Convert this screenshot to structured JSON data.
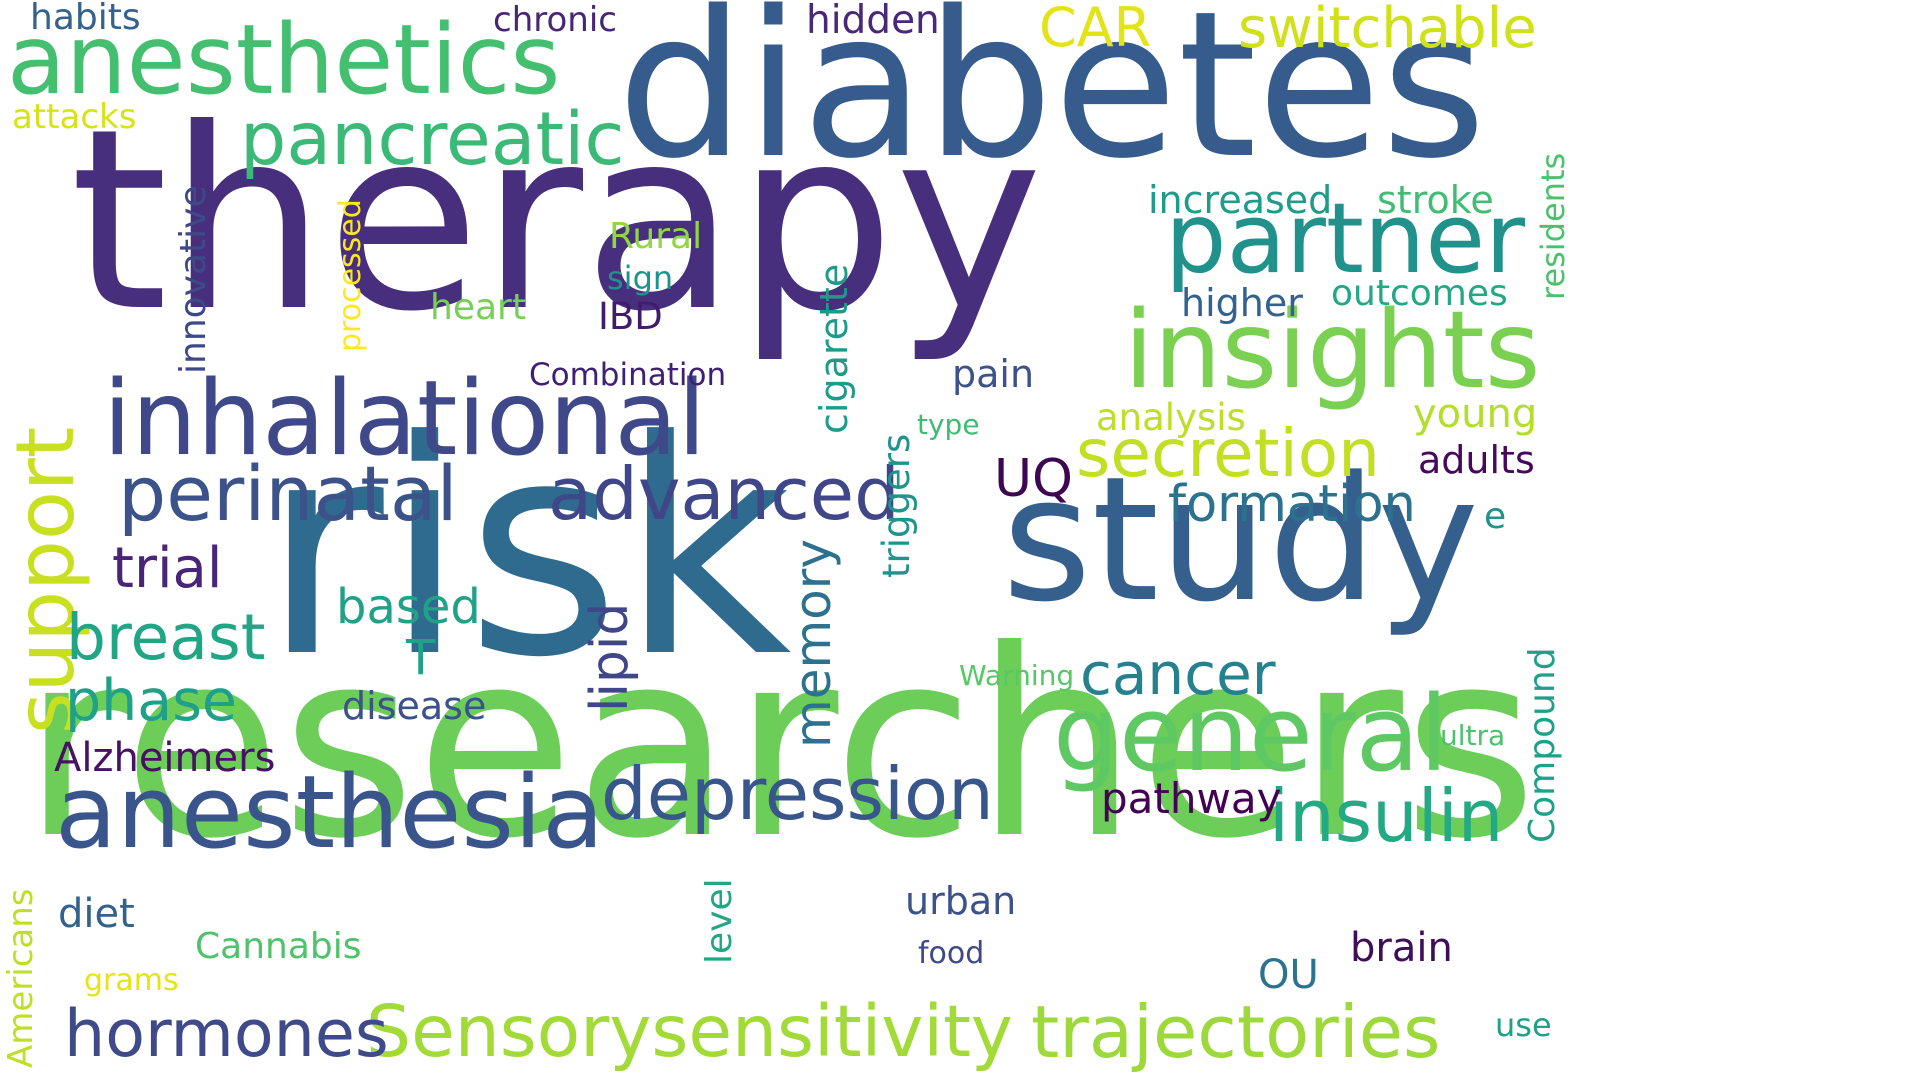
{
  "words": [
    {
      "text": "therapy",
      "color": "#472f7d"
    },
    {
      "text": "researchers",
      "color": "#6cce59"
    },
    {
      "text": "risk",
      "color": "#2f6b8e"
    },
    {
      "text": "diabetes",
      "color": "#365c8d"
    },
    {
      "text": "study",
      "color": "#355f8d"
    },
    {
      "text": "anesthetics",
      "color": "#44bf70"
    },
    {
      "text": "inhalational",
      "color": "#3f4889"
    },
    {
      "text": "anesthesia",
      "color": "#3a548c"
    },
    {
      "text": "insights",
      "color": "#7ad151"
    },
    {
      "text": "partner",
      "color": "#21918c"
    },
    {
      "text": "general",
      "color": "#5ec962"
    },
    {
      "text": "perinatal",
      "color": "#3b528b"
    },
    {
      "text": "advanced",
      "color": "#3f4788"
    },
    {
      "text": "pancreatic",
      "color": "#3aba76"
    },
    {
      "text": "support",
      "color": "#c8e020"
    },
    {
      "text": "Sensorysensitivity",
      "color": "#a2da37"
    },
    {
      "text": "trajectories",
      "color": "#9dd93b"
    },
    {
      "text": "depression",
      "color": "#39568c"
    },
    {
      "text": "insulin",
      "color": "#23a983"
    },
    {
      "text": "secretion",
      "color": "#c2df23"
    },
    {
      "text": "hormones",
      "color": "#3e4a89"
    },
    {
      "text": "breast",
      "color": "#21a685"
    },
    {
      "text": "formation",
      "color": "#2c728e"
    },
    {
      "text": "cancer",
      "color": "#26818e"
    },
    {
      "text": "phase",
      "color": "#1fa088"
    },
    {
      "text": "trial",
      "color": "#482576"
    },
    {
      "text": "switchable",
      "color": "#d0e11c"
    },
    {
      "text": "CAR",
      "color": "#e2e418"
    },
    {
      "text": "memory",
      "color": "#2c718e"
    },
    {
      "text": "lipid",
      "color": "#404688"
    },
    {
      "text": "based",
      "color": "#1fa287"
    },
    {
      "text": "Alzheimers",
      "color": "#471164"
    },
    {
      "text": "UQ",
      "color": "#3e0751"
    },
    {
      "text": "pathway",
      "color": "#440154"
    },
    {
      "text": "innovative",
      "color": "#3e4989"
    },
    {
      "text": "cigarette",
      "color": "#1f9a8a"
    },
    {
      "text": "disease",
      "color": "#3b528b"
    },
    {
      "text": "triggers",
      "color": "#20938c"
    },
    {
      "text": "Compound",
      "color": "#1fa088"
    },
    {
      "text": "residents",
      "color": "#4ac16d"
    },
    {
      "text": "increased",
      "color": "#1e9c89"
    },
    {
      "text": "stroke",
      "color": "#40bd72"
    },
    {
      "text": "higher",
      "color": "#34618d"
    },
    {
      "text": "outcomes",
      "color": "#22a884"
    },
    {
      "text": "analysis",
      "color": "#bddf26"
    },
    {
      "text": "young",
      "color": "#b5de2b"
    },
    {
      "text": "adults",
      "color": "#46085c"
    },
    {
      "text": "pain",
      "color": "#3b528b"
    },
    {
      "text": "brain",
      "color": "#3f0e58"
    },
    {
      "text": "urban",
      "color": "#3b528b"
    },
    {
      "text": "diet",
      "color": "#33638d"
    },
    {
      "text": "Cannabis",
      "color": "#4ec36b"
    },
    {
      "text": "level",
      "color": "#22a785"
    },
    {
      "text": "heart",
      "color": "#75d054"
    },
    {
      "text": "Rural",
      "color": "#8fd744"
    },
    {
      "text": "sign",
      "color": "#20928c"
    },
    {
      "text": "IBD",
      "color": "#3f1d6c"
    },
    {
      "text": "Combination",
      "color": "#3e2075"
    },
    {
      "text": "habits",
      "color": "#34618d"
    },
    {
      "text": "chronic",
      "color": "#482475"
    },
    {
      "text": "hidden",
      "color": "#482878"
    },
    {
      "text": "attacks",
      "color": "#d8e219"
    },
    {
      "text": "processed",
      "color": "#fde725"
    },
    {
      "text": "Americans",
      "color": "#bddf26"
    },
    {
      "text": "T",
      "color": "#1fa287"
    },
    {
      "text": "type",
      "color": "#3fbc73"
    },
    {
      "text": "Warning",
      "color": "#58c765"
    },
    {
      "text": "ultra",
      "color": "#4cc26c"
    },
    {
      "text": "e",
      "color": "#21918c"
    },
    {
      "text": "food",
      "color": "#3f4889"
    },
    {
      "text": "grams",
      "color": "#e5e419"
    },
    {
      "text": "OU",
      "color": "#2c738e"
    },
    {
      "text": "use",
      "color": "#1fa088"
    }
  ]
}
